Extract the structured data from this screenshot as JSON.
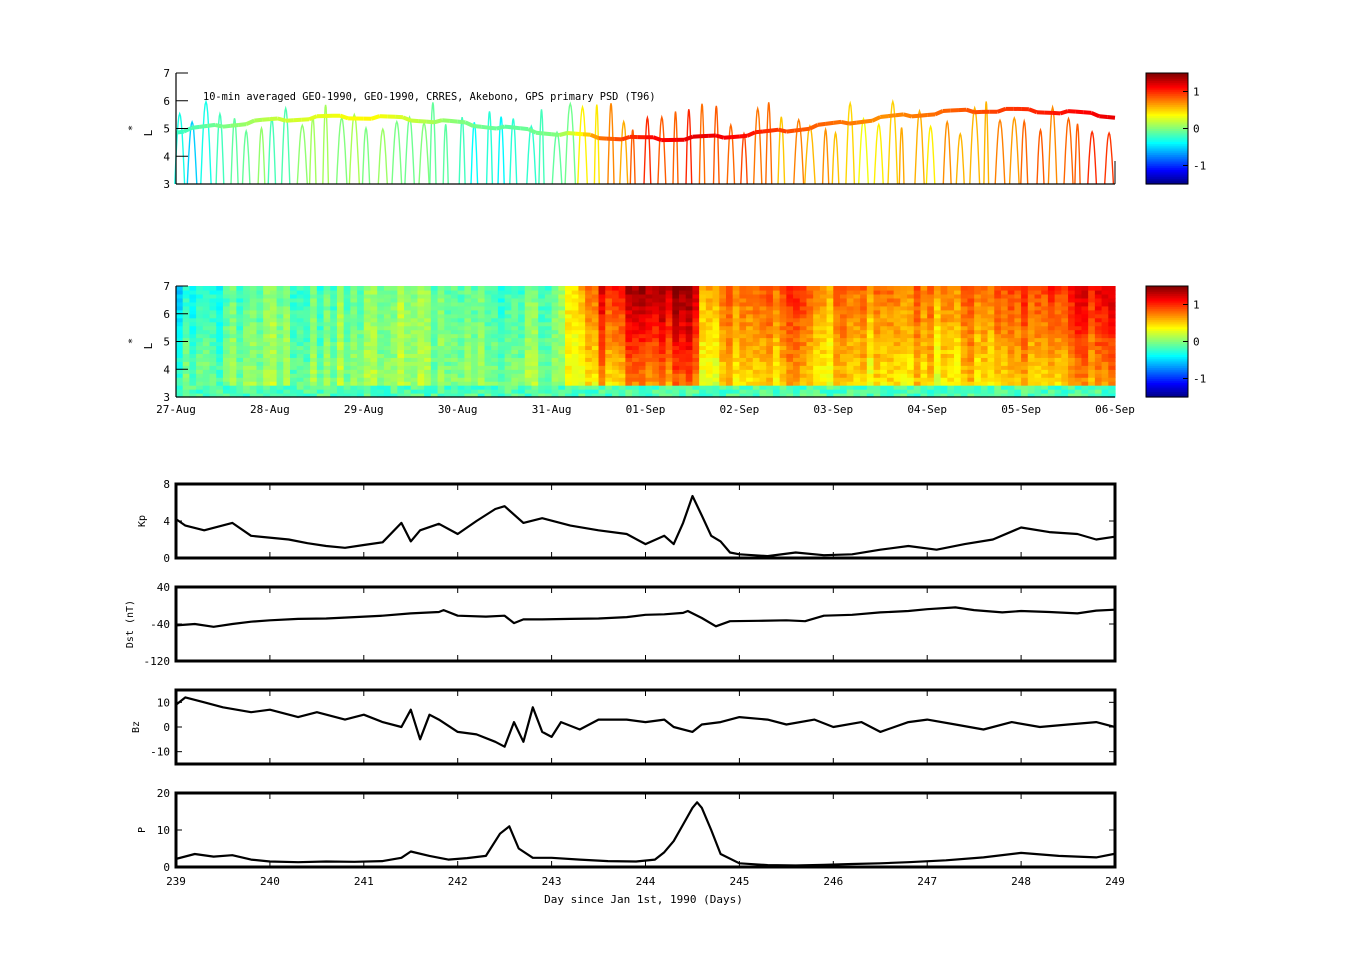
{
  "chart_data": [
    {
      "type": "heatmap",
      "panel": "observations",
      "annotation": "10-min averaged GEO-1990, GEO-1990, CRRES, Akebono, GPS  primary PSD (T96)",
      "ylabel_main": "L",
      "ylabel_sup": "*",
      "ylim": [
        3,
        7
      ],
      "yticks": [
        3,
        4,
        5,
        6,
        7
      ],
      "colorbar": {
        "ticks": [
          1,
          0,
          -1
        ],
        "range": [
          -1.5,
          1.5
        ],
        "colormap": "jet"
      },
      "track_profile": [
        [
          0.0,
          -0.2
        ],
        [
          0.5,
          0.0
        ],
        [
          1.0,
          0.2
        ],
        [
          1.5,
          0.3
        ],
        [
          2.0,
          0.4
        ],
        [
          2.5,
          0.2
        ],
        [
          3.0,
          0.0
        ],
        [
          3.5,
          -0.1
        ],
        [
          4.0,
          0.0
        ],
        [
          4.2,
          0.3
        ],
        [
          4.5,
          0.8
        ],
        [
          5.0,
          1.1
        ],
        [
          5.5,
          1.2
        ],
        [
          6.0,
          1.1
        ],
        [
          6.5,
          0.9
        ],
        [
          7.0,
          0.8
        ],
        [
          7.5,
          0.7
        ],
        [
          8.0,
          0.8
        ],
        [
          8.5,
          0.9
        ],
        [
          9.0,
          1.0
        ],
        [
          9.5,
          1.1
        ],
        [
          10.0,
          1.2
        ]
      ]
    },
    {
      "type": "heatmap",
      "panel": "reanalysis",
      "ylabel_main": "L",
      "ylabel_sup": "*",
      "ylim": [
        3,
        7
      ],
      "yticks": [
        3,
        4,
        5,
        6,
        7
      ],
      "xtick_labels": [
        "27-Aug",
        "28-Aug",
        "29-Aug",
        "30-Aug",
        "31-Aug",
        "01-Sep",
        "02-Sep",
        "03-Sep",
        "04-Sep",
        "05-Sep",
        "06-Sep"
      ],
      "colorbar": {
        "ticks": [
          1,
          0,
          -1
        ],
        "range": [
          -1.5,
          1.5
        ],
        "colormap": "jet"
      },
      "time_profile": [
        [
          0.0,
          -0.6
        ],
        [
          0.5,
          -0.4
        ],
        [
          1.0,
          -0.2
        ],
        [
          1.5,
          -0.3
        ],
        [
          2.0,
          -0.2
        ],
        [
          2.5,
          -0.1
        ],
        [
          3.0,
          -0.2
        ],
        [
          3.5,
          -0.4
        ],
        [
          4.0,
          -0.2
        ],
        [
          4.3,
          0.4
        ],
        [
          4.5,
          0.9
        ],
        [
          5.0,
          1.3
        ],
        [
          5.5,
          1.2
        ],
        [
          5.6,
          0.6
        ],
        [
          6.0,
          0.6
        ],
        [
          6.5,
          0.8
        ],
        [
          7.0,
          0.6
        ],
        [
          7.5,
          0.6
        ],
        [
          8.0,
          0.6
        ],
        [
          8.5,
          0.7
        ],
        [
          9.0,
          0.8
        ],
        [
          9.5,
          0.9
        ],
        [
          10.0,
          1.0
        ]
      ]
    },
    {
      "type": "line",
      "panel": "Kp",
      "ylabel": "Kp",
      "ylim": [
        0,
        8
      ],
      "yticks": [
        0,
        4,
        8
      ],
      "x": [
        239.0,
        239.1,
        239.3,
        239.6,
        239.8,
        240.2,
        240.4,
        240.6,
        240.8,
        241.0,
        241.2,
        241.4,
        241.5,
        241.6,
        241.8,
        242.0,
        242.2,
        242.4,
        242.5,
        242.7,
        242.9,
        243.2,
        243.5,
        243.8,
        244.0,
        244.2,
        244.3,
        244.4,
        244.5,
        244.6,
        244.7,
        244.8,
        244.9,
        245.0,
        245.3,
        245.6,
        245.9,
        246.2,
        246.5,
        246.8,
        247.1,
        247.4,
        247.7,
        248.0,
        248.3,
        248.6,
        248.8,
        249.0
      ],
      "y": [
        4.2,
        3.5,
        3.0,
        3.8,
        2.4,
        2.0,
        1.6,
        1.3,
        1.1,
        1.4,
        1.7,
        3.8,
        1.8,
        3.0,
        3.7,
        2.6,
        4.0,
        5.3,
        5.6,
        3.8,
        4.3,
        3.5,
        3.0,
        2.6,
        1.5,
        2.4,
        1.5,
        3.8,
        6.7,
        4.6,
        2.4,
        1.8,
        0.6,
        0.4,
        0.2,
        0.6,
        0.3,
        0.4,
        0.9,
        1.3,
        0.9,
        1.5,
        2.0,
        3.3,
        2.8,
        2.6,
        2.0,
        2.3
      ],
      "series": [
        {
          "values": "y",
          "color": "#000000"
        }
      ]
    },
    {
      "type": "line",
      "panel": "Dst",
      "ylabel": "Dst (nT)",
      "ylim": [
        -120,
        40
      ],
      "yticks": [
        -120,
        -40,
        40
      ],
      "x": [
        239.0,
        239.2,
        239.4,
        239.6,
        239.8,
        240.0,
        240.3,
        240.6,
        240.9,
        241.2,
        241.5,
        241.8,
        241.85,
        242.0,
        242.3,
        242.5,
        242.6,
        242.7,
        242.9,
        243.2,
        243.5,
        243.8,
        244.0,
        244.2,
        244.4,
        244.45,
        244.6,
        244.75,
        244.9,
        245.2,
        245.5,
        245.7,
        245.9,
        246.2,
        246.5,
        246.8,
        247.0,
        247.3,
        247.5,
        247.8,
        248.0,
        248.3,
        248.6,
        248.8,
        249.0
      ],
      "y": [
        -43,
        -40,
        -46,
        -40,
        -35,
        -32,
        -29,
        -28,
        -25,
        -22,
        -17,
        -14,
        -10,
        -22,
        -24,
        -22,
        -38,
        -30,
        -30,
        -29,
        -28,
        -25,
        -20,
        -19,
        -16,
        -12,
        -27,
        -45,
        -34,
        -33,
        -32,
        -34,
        -22,
        -20,
        -15,
        -12,
        -8,
        -4,
        -10,
        -15,
        -12,
        -14,
        -17,
        -11,
        -9
      ],
      "series": [
        {
          "values": "y",
          "color": "#000000"
        }
      ]
    },
    {
      "type": "line",
      "panel": "Bz",
      "ylabel": "Bz",
      "ylim": [
        -15,
        15
      ],
      "yticks": [
        -10,
        0,
        10
      ],
      "x": [
        239.0,
        239.1,
        239.3,
        239.5,
        239.8,
        240.0,
        240.3,
        240.5,
        240.8,
        241.0,
        241.2,
        241.4,
        241.5,
        241.6,
        241.7,
        241.8,
        242.0,
        242.2,
        242.4,
        242.5,
        242.6,
        242.7,
        242.8,
        242.9,
        243.0,
        243.1,
        243.3,
        243.5,
        243.8,
        244.0,
        244.2,
        244.3,
        244.5,
        244.6,
        244.8,
        245.0,
        245.3,
        245.5,
        245.8,
        246.0,
        246.3,
        246.5,
        246.8,
        247.0,
        247.3,
        247.6,
        247.9,
        248.2,
        248.5,
        248.8,
        249.0
      ],
      "y": [
        9,
        12,
        10,
        8,
        6,
        7,
        4,
        6,
        3,
        5,
        2,
        0,
        7,
        -5,
        5,
        3,
        -2,
        -3,
        -6,
        -8,
        2,
        -6,
        8,
        -2,
        -4,
        2,
        -1,
        3,
        3,
        2,
        3,
        0,
        -2,
        1,
        2,
        4,
        3,
        1,
        3,
        0,
        2,
        -2,
        2,
        3,
        1,
        -1,
        2,
        0,
        1,
        2,
        0
      ],
      "series": [
        {
          "values": "y",
          "color": "#000000"
        }
      ]
    },
    {
      "type": "line",
      "panel": "P",
      "ylabel": "P",
      "ylim": [
        0,
        20
      ],
      "yticks": [
        0,
        10,
        20
      ],
      "xlabel": "Day since Jan 1st, 1990 (Days)",
      "xticks": [
        239,
        240,
        241,
        242,
        243,
        244,
        245,
        246,
        247,
        248,
        249
      ],
      "x": [
        239.0,
        239.2,
        239.4,
        239.6,
        239.8,
        240.0,
        240.3,
        240.6,
        240.9,
        241.2,
        241.4,
        241.5,
        241.7,
        241.9,
        242.1,
        242.3,
        242.45,
        242.55,
        242.65,
        242.8,
        243.0,
        243.3,
        243.6,
        243.9,
        244.1,
        244.2,
        244.3,
        244.4,
        244.5,
        244.55,
        244.6,
        244.7,
        244.8,
        245.0,
        245.3,
        245.6,
        245.9,
        246.2,
        246.5,
        246.8,
        247.2,
        247.6,
        248.0,
        248.4,
        248.8,
        249.0
      ],
      "y": [
        2.2,
        3.5,
        2.8,
        3.2,
        2.0,
        1.5,
        1.3,
        1.5,
        1.4,
        1.6,
        2.5,
        4.2,
        3.0,
        2.0,
        2.4,
        3.0,
        9.0,
        11.0,
        5.0,
        2.5,
        2.5,
        2.0,
        1.6,
        1.5,
        2.0,
        4.0,
        7.0,
        11.5,
        16.0,
        17.5,
        16.0,
        10.0,
        3.5,
        1.0,
        0.5,
        0.4,
        0.6,
        0.8,
        1.0,
        1.3,
        1.8,
        2.6,
        3.8,
        3.0,
        2.6,
        3.6
      ],
      "series": [
        {
          "values": "y",
          "color": "#000000"
        }
      ]
    }
  ]
}
